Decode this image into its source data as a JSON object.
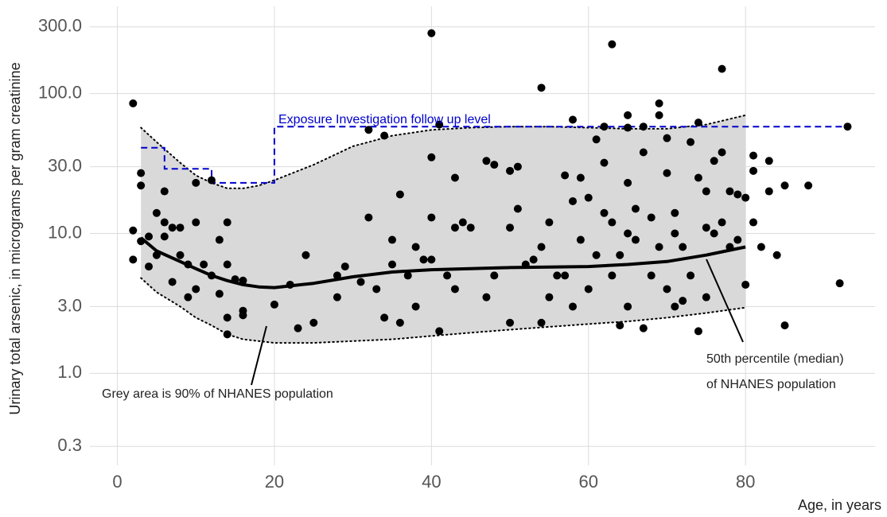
{
  "chart_data": {
    "type": "scatter",
    "x_label": "Age, in years",
    "y_label": "Urinary total arsenic, in micrograms per gram creatinine",
    "xlim": [
      -3.5,
      96.5
    ],
    "ylim": [
      0.22,
      420
    ],
    "log_y": true,
    "grid": true,
    "xticks": [
      0,
      20,
      40,
      60,
      80
    ],
    "yticks": [
      0.3,
      {
        "value": 1,
        "label": "1.0"
      },
      {
        "value": 3,
        "label": "3.0"
      },
      {
        "value": 10,
        "label": "10.0"
      },
      {
        "value": 30,
        "label": "30.0"
      },
      {
        "value": 100,
        "label": "100.0"
      },
      {
        "value": 300,
        "label": "300.0"
      }
    ],
    "annotations": [
      "Exposure Investigation follow up level",
      "Grey area is 90% of NHANES population",
      "50th percentile (median)",
      "of NHANES population"
    ],
    "band": {
      "color": "#d9d9d9",
      "x": [
        3,
        5,
        8,
        10,
        12,
        14,
        16,
        18,
        20,
        25,
        30,
        35,
        40,
        45,
        50,
        55,
        60,
        65,
        70,
        75,
        80
      ],
      "upper": [
        57,
        45,
        32,
        26,
        23,
        21,
        21,
        22,
        24,
        31,
        42,
        50,
        55,
        57,
        58,
        58,
        57,
        56,
        56,
        60,
        70
      ],
      "lower": [
        4.8,
        3.8,
        3.0,
        2.5,
        2.2,
        1.9,
        1.75,
        1.7,
        1.65,
        1.65,
        1.7,
        1.75,
        1.85,
        1.95,
        2.05,
        2.15,
        2.25,
        2.35,
        2.5,
        2.7,
        2.95
      ]
    },
    "median": {
      "color": "#000000",
      "x": [
        3,
        5,
        8,
        10,
        12,
        14,
        16,
        18,
        20,
        25,
        30,
        35,
        40,
        45,
        50,
        55,
        60,
        65,
        70,
        75,
        80
      ],
      "values": [
        9.3,
        7.5,
        6.3,
        5.6,
        5.0,
        4.6,
        4.3,
        4.15,
        4.1,
        4.4,
        4.9,
        5.3,
        5.5,
        5.6,
        5.7,
        5.75,
        5.8,
        6.0,
        6.3,
        7.0,
        8.0
      ]
    },
    "follow_up": {
      "color": "#0000cc",
      "x": [
        3,
        6,
        6,
        12,
        12,
        20,
        20,
        93
      ],
      "values": [
        41,
        41,
        29,
        29,
        23,
        23,
        58,
        58
      ]
    },
    "points": {
      "color": "#000000",
      "x": [
        2,
        2,
        2,
        3,
        3,
        3,
        4,
        4,
        5,
        5,
        6,
        6,
        6,
        7,
        7,
        8,
        8,
        9,
        9,
        10,
        10,
        10,
        11,
        12,
        12,
        13,
        13,
        14,
        14,
        14,
        14,
        15,
        16,
        16,
        16,
        20,
        22,
        23,
        24,
        25,
        28,
        28,
        29,
        31,
        32,
        32,
        33,
        34,
        34,
        35,
        35,
        36,
        36,
        37,
        38,
        38,
        39,
        40,
        40,
        40,
        40,
        41,
        41,
        42,
        43,
        43,
        43,
        44,
        45,
        47,
        47,
        48,
        48,
        50,
        50,
        50,
        51,
        51,
        52,
        53,
        54,
        54,
        54,
        55,
        55,
        56,
        57,
        57,
        58,
        58,
        58,
        59,
        59,
        60,
        60,
        61,
        61,
        62,
        62,
        62,
        63,
        63,
        63,
        64,
        64,
        65,
        65,
        65,
        65,
        65,
        66,
        66,
        67,
        67,
        67,
        68,
        68,
        69,
        69,
        69,
        70,
        70,
        70,
        71,
        71,
        71,
        72,
        72,
        73,
        73,
        74,
        74,
        74,
        75,
        75,
        75,
        76,
        76,
        77,
        77,
        77,
        78,
        78,
        79,
        79,
        80,
        80,
        81,
        81,
        81,
        82,
        83,
        83,
        84,
        85,
        85,
        88,
        92,
        93
      ],
      "values": [
        85,
        10.5,
        6.5,
        27,
        22,
        8.8,
        9.5,
        5.8,
        14,
        7,
        20,
        12,
        9.5,
        11,
        4.5,
        11,
        7,
        6,
        3.5,
        12,
        4,
        23,
        6,
        24,
        5,
        9,
        3.7,
        12,
        6,
        2.5,
        1.9,
        4.7,
        2.8,
        2.6,
        4.6,
        3.1,
        4.3,
        2.1,
        7,
        2.3,
        5,
        3.5,
        5.8,
        4.5,
        55,
        13,
        4,
        50,
        2.5,
        9,
        6,
        19,
        2.3,
        5,
        8,
        3,
        6.5,
        270,
        35,
        13,
        6.5,
        60,
        2,
        5,
        11,
        25,
        4,
        12,
        11,
        33,
        3.5,
        31,
        5,
        28,
        11,
        2.3,
        30,
        15,
        6,
        6.5,
        110,
        8,
        2.3,
        12,
        3.5,
        5,
        26,
        5,
        65,
        17,
        3,
        9,
        25,
        18,
        4,
        47,
        7,
        58,
        32,
        14,
        225,
        12,
        5,
        7,
        2.2,
        70,
        57,
        23,
        10,
        3,
        15,
        9,
        58,
        38,
        2.1,
        13,
        5,
        85,
        70,
        8,
        48,
        27,
        4,
        14,
        10,
        3,
        8,
        3.3,
        45,
        5,
        62,
        25,
        2,
        20,
        11,
        3.5,
        33,
        10,
        150,
        38,
        12,
        20,
        8,
        9,
        19,
        4.3,
        18,
        36,
        28,
        12,
        8,
        20,
        33,
        7,
        22,
        2.2,
        22,
        4.4,
        58
      ]
    }
  }
}
